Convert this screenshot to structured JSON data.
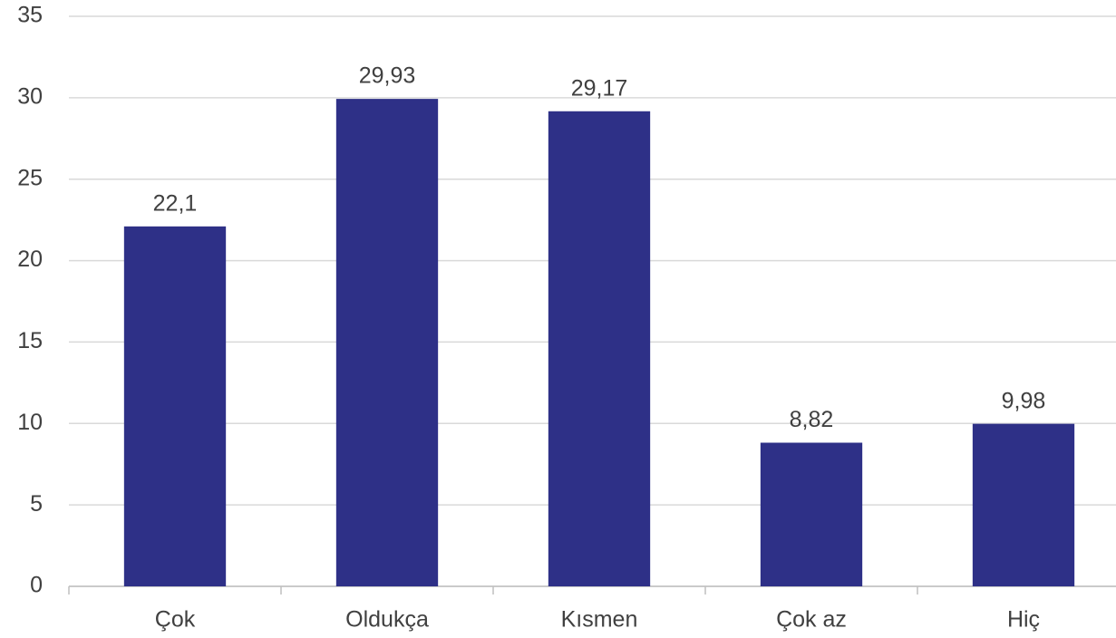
{
  "chart_data": {
    "type": "bar",
    "categories": [
      "Çok",
      "Oldukça",
      "Kısmen",
      "Çok az",
      "Hiç"
    ],
    "values": [
      22.1,
      29.93,
      29.17,
      8.82,
      9.98
    ],
    "value_labels": [
      "22,1",
      "29,93",
      "29,17",
      "8,82",
      "9,98"
    ],
    "color": "#2e3087",
    "ylim": [
      0,
      35
    ],
    "yticks": [
      0,
      5,
      10,
      15,
      20,
      25,
      30,
      35
    ],
    "grid": true
  }
}
